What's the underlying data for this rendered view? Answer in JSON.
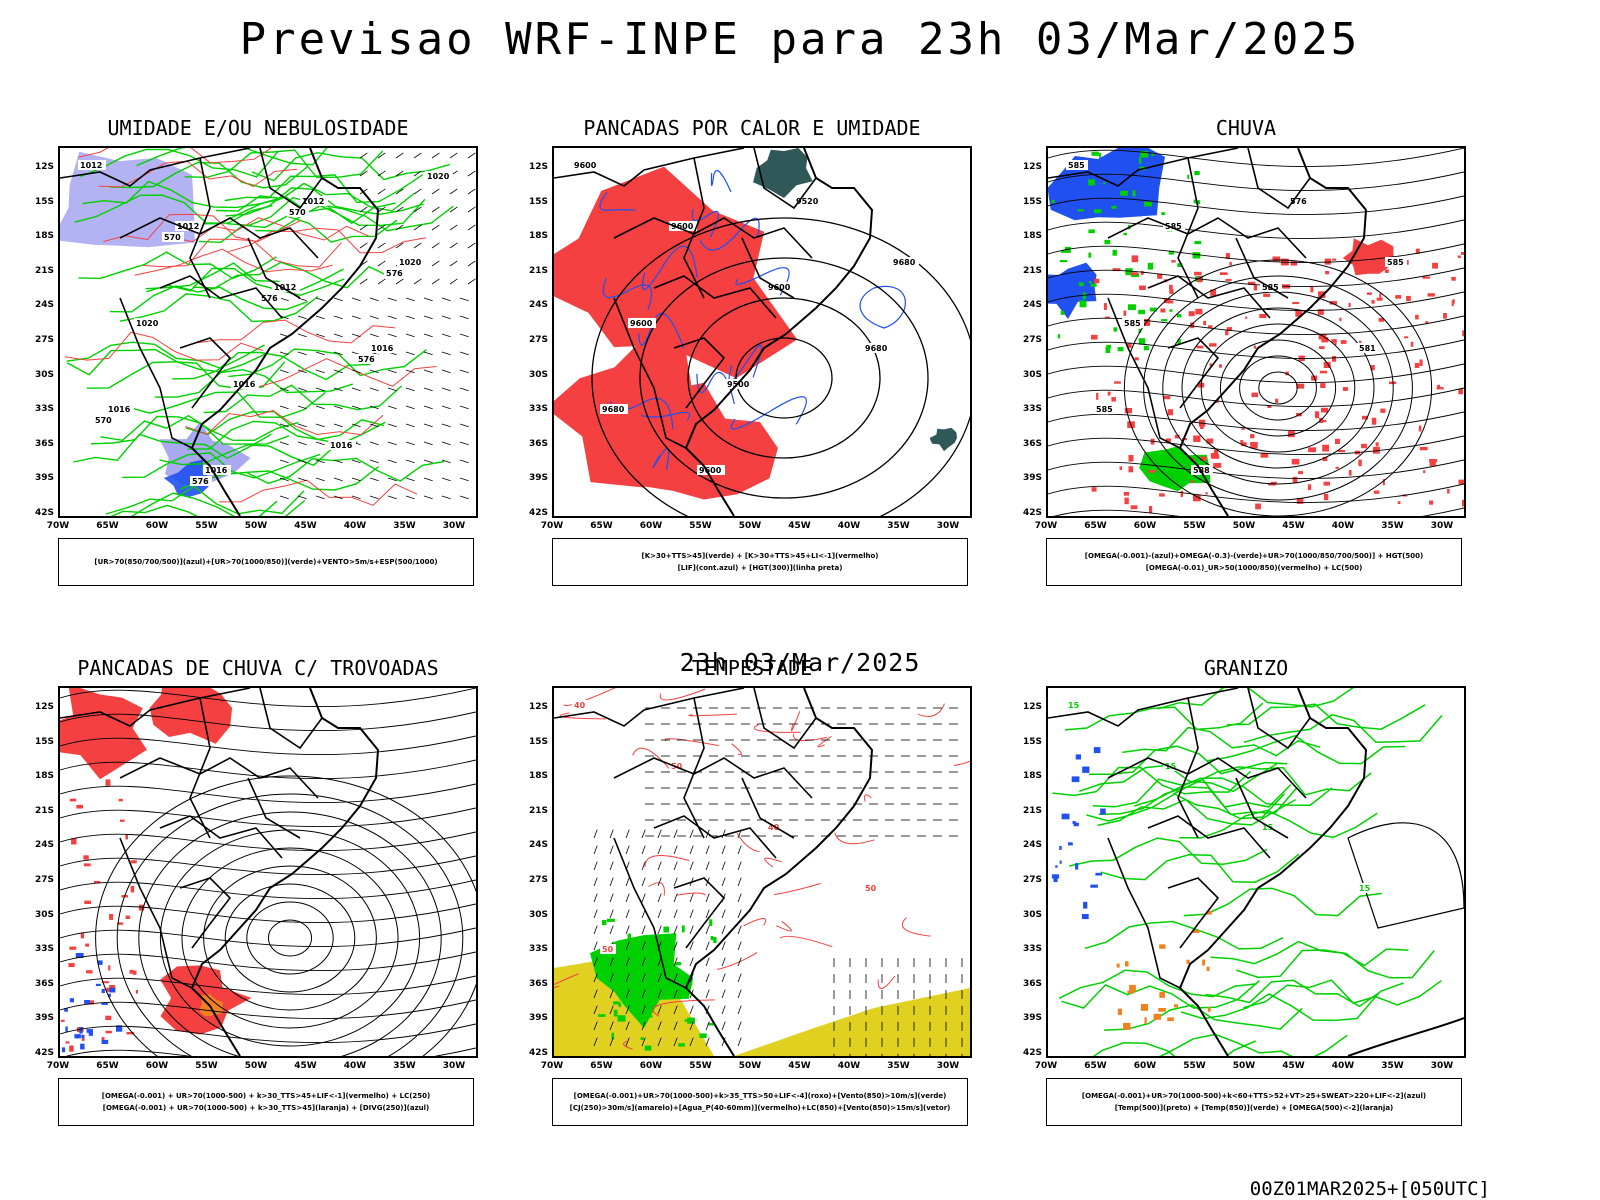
{
  "title": "Previsao WRF-INPE  para 23h 03/Mar/2025",
  "mid_title": "23h 03/Mar/2025",
  "footer": "00Z01MAR2025+[050UTC]",
  "lat_ticks": [
    "12S",
    "15S",
    "18S",
    "21S",
    "24S",
    "27S",
    "30S",
    "33S",
    "36S",
    "39S",
    "42S"
  ],
  "lon_ticks": [
    "70W",
    "65W",
    "60W",
    "55W",
    "50W",
    "45W",
    "40W",
    "35W",
    "30W"
  ],
  "colors": {
    "red": "#f44040",
    "green": "#00d000",
    "blue": "#2050f0",
    "lavender": "#a0a0f0",
    "darkteal": "#305858",
    "yellow": "#e0d020",
    "orange": "#f08020",
    "black": "#000000"
  },
  "panels": [
    {
      "title": "UMIDADE E/OU NEBULOSIDADE",
      "legend": [
        "[UR>70(850/700/500)](azul)+[UR>70(1000/850)](verde)+VENTO>5m/s+ESP(500/1000)"
      ],
      "contour_labels": [
        "1012",
        "1012",
        "1012",
        "1016",
        "1016",
        "1016",
        "1012",
        "1020",
        "1020",
        "1016",
        "1016",
        "1020",
        "570",
        "576",
        "576",
        "570",
        "576",
        "570",
        "576"
      ]
    },
    {
      "title": "PANCADAS POR CALOR E UMIDADE",
      "legend": [
        "[K>30+TTS>45](verde) + [K>30+TTS>45+LI<-1](vermelho)",
        "[LIF](cont.azul) + [HGT(300)](linha preta)"
      ],
      "contour_labels": [
        "9600",
        "9600",
        "9600",
        "9680",
        "9680",
        "9600",
        "9520",
        "9680",
        "9600",
        "9500"
      ]
    },
    {
      "title": "CHUVA",
      "legend": [
        "[OMEGA(-0.001)-(azul)+OMEGA(-0.3)-(verde)+UR>70(1000/850/700/500)] + HGT(500)",
        "[OMEGA(-0.01)_UR>50(1000/850)(vermelho) + LC(500)"
      ],
      "contour_labels": [
        "585",
        "585",
        "585",
        "581",
        "585",
        "588",
        "576",
        "585",
        "585"
      ]
    },
    {
      "title": "PANCADAS DE CHUVA C/ TROVOADAS",
      "legend": [
        "[OMEGA(-0.001) + UR>70(1000-500) + k>30_TTS>45+LIF<-1](vermelho) + LC(250)",
        "[OMEGA(-0.001) + UR>70(1000-500) + k>30_TTS>45](laranja) + [DIVG(250)](azul)"
      ],
      "contour_labels": []
    },
    {
      "title": "TEMPESTADE",
      "legend": [
        "[OMEGA(-0.001)+UR>70(1000-500)+k>35_TTS>50+LIF<-4](roxo)+[Vento(850)>10m/s](verde)",
        "[CJ(250)>30m/s](amarelo)+[Agua_P(40-60mm)](vermelho)+LC(850)+[Vento(850)>15m/s](vetor)"
      ],
      "contour_labels": [
        "40",
        "50",
        "40",
        "50",
        "50"
      ]
    },
    {
      "title": "GRANIZO",
      "legend": [
        "[OMEGA(-0.001)+UR>70(1000-500)+k<60+TTS>52+VT>25+SWEAT>220+LIF<-2](azul)",
        "[Temp(500)](preto) + [Temp(850)](verde) + [OMEGA(500)<-2](laranja)"
      ],
      "contour_labels": [
        "15",
        "15",
        "15",
        "15"
      ]
    }
  ]
}
